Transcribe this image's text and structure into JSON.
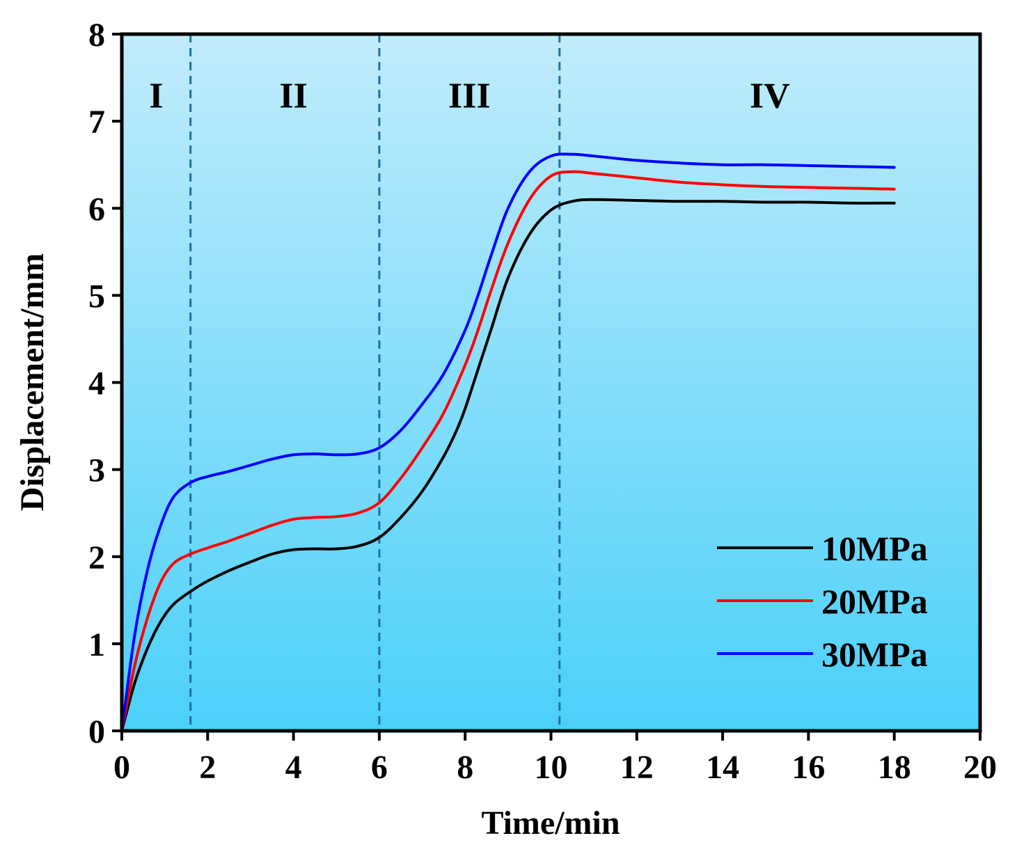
{
  "chart_data": {
    "type": "line",
    "xlabel": "Time/min",
    "ylabel": "Displacement/mm",
    "xlim": [
      0,
      20
    ],
    "ylim": [
      0,
      8
    ],
    "xticks": [
      0,
      2,
      4,
      6,
      8,
      10,
      12,
      14,
      16,
      18,
      20
    ],
    "yticks": [
      0,
      1,
      2,
      3,
      4,
      5,
      6,
      7,
      8
    ],
    "xtick_labels": [
      "0",
      "2",
      "4",
      "6",
      "8",
      "10",
      "12",
      "14",
      "16",
      "18",
      "20"
    ],
    "ytick_labels": [
      "0",
      "1",
      "2",
      "3",
      "4",
      "5",
      "6",
      "7",
      "8"
    ],
    "legend_position": "bottom-right",
    "background_gradient": [
      "#c1ecfb",
      "#4bd0fa"
    ],
    "stage_boundaries": [
      1.6,
      6.0,
      10.2
    ],
    "stage_boundary_color": "#1f6fa3",
    "stages": [
      {
        "label": "I",
        "x": 0.8
      },
      {
        "label": "II",
        "x": 4.0
      },
      {
        "label": "III",
        "x": 8.1
      },
      {
        "label": "IV",
        "x": 15.1
      }
    ],
    "stage_label_y": 7.3,
    "series": [
      {
        "name": "10MPa",
        "color": "#000000",
        "x": [
          0,
          0.3,
          0.6,
          0.9,
          1.2,
          1.6,
          2,
          2.5,
          3,
          3.5,
          4,
          4.5,
          5,
          5.5,
          6,
          6.5,
          7,
          7.5,
          7.8,
          8,
          8.3,
          8.6,
          9,
          9.5,
          10,
          10.5,
          11,
          12,
          13,
          14,
          15,
          16,
          17,
          18
        ],
        "y": [
          0,
          0.55,
          0.95,
          1.25,
          1.45,
          1.6,
          1.72,
          1.84,
          1.94,
          2.03,
          2.08,
          2.09,
          2.09,
          2.12,
          2.22,
          2.45,
          2.75,
          3.15,
          3.45,
          3.7,
          4.15,
          4.6,
          5.2,
          5.7,
          5.98,
          6.08,
          6.1,
          6.09,
          6.08,
          6.08,
          6.07,
          6.07,
          6.06,
          6.06
        ]
      },
      {
        "name": "20MPa",
        "color": "#ff0000",
        "x": [
          0,
          0.3,
          0.6,
          0.9,
          1.2,
          1.6,
          2,
          2.5,
          3,
          3.5,
          4,
          4.5,
          5,
          5.5,
          6,
          6.5,
          7,
          7.5,
          8,
          8.3,
          8.6,
          9,
          9.5,
          10,
          10.5,
          11,
          12,
          13,
          14,
          15,
          16,
          17,
          18
        ],
        "y": [
          0,
          0.75,
          1.3,
          1.7,
          1.92,
          2.03,
          2.1,
          2.18,
          2.27,
          2.36,
          2.43,
          2.45,
          2.46,
          2.5,
          2.62,
          2.9,
          3.25,
          3.65,
          4.2,
          4.6,
          5.05,
          5.6,
          6.1,
          6.37,
          6.42,
          6.4,
          6.35,
          6.3,
          6.27,
          6.25,
          6.24,
          6.23,
          6.22
        ]
      },
      {
        "name": "30MPa",
        "color": "#0000ff",
        "x": [
          0,
          0.3,
          0.6,
          0.9,
          1.2,
          1.6,
          2,
          2.5,
          3,
          3.5,
          4,
          4.5,
          5,
          5.5,
          6,
          6.5,
          7,
          7.5,
          8,
          8.3,
          8.6,
          9,
          9.5,
          10,
          10.5,
          11,
          12,
          13,
          14,
          15,
          16,
          17,
          18
        ],
        "y": [
          0,
          1.1,
          1.85,
          2.35,
          2.68,
          2.85,
          2.92,
          2.98,
          3.05,
          3.12,
          3.17,
          3.18,
          3.17,
          3.18,
          3.25,
          3.45,
          3.75,
          4.1,
          4.6,
          5.0,
          5.45,
          6.0,
          6.42,
          6.6,
          6.62,
          6.6,
          6.55,
          6.52,
          6.5,
          6.5,
          6.49,
          6.48,
          6.47
        ]
      }
    ]
  }
}
